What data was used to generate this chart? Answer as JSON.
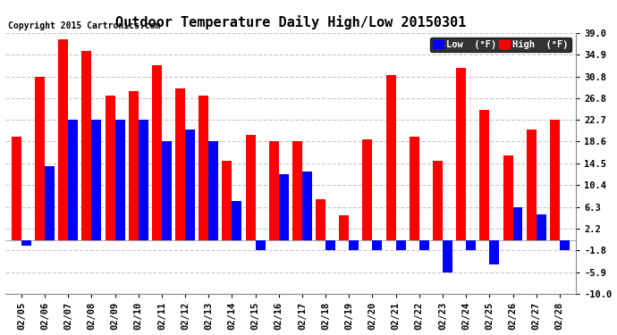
{
  "title": "Outdoor Temperature Daily High/Low 20150301",
  "copyright": "Copyright 2015 Cartronics.com",
  "legend_low": "Low  (°F)",
  "legend_high": "High  (°F)",
  "dates": [
    "02/05",
    "02/06",
    "02/07",
    "02/08",
    "02/09",
    "02/10",
    "02/11",
    "02/12",
    "02/13",
    "02/14",
    "02/15",
    "02/16",
    "02/17",
    "02/18",
    "02/19",
    "02/20",
    "02/21",
    "02/22",
    "02/23",
    "02/24",
    "02/25",
    "02/26",
    "02/27",
    "02/28"
  ],
  "high": [
    19.5,
    30.8,
    37.8,
    35.6,
    27.2,
    28.0,
    33.0,
    28.5,
    27.2,
    15.0,
    19.8,
    18.6,
    18.6,
    7.8,
    4.8,
    19.0,
    31.0,
    19.5,
    15.0,
    32.5,
    24.5,
    16.0,
    20.8,
    22.7
  ],
  "low": [
    -1.0,
    14.0,
    22.7,
    22.7,
    22.7,
    22.7,
    18.6,
    20.8,
    18.6,
    7.5,
    -1.8,
    12.5,
    13.0,
    -1.8,
    -1.8,
    -1.8,
    -1.8,
    -1.8,
    -5.9,
    -1.8,
    -4.5,
    6.3,
    5.0,
    -1.8
  ],
  "ylim": [
    -10.0,
    39.0
  ],
  "yticks": [
    39.0,
    34.9,
    30.8,
    26.8,
    22.7,
    18.6,
    14.5,
    10.4,
    6.3,
    2.2,
    -1.8,
    -5.9,
    -10.0
  ],
  "bar_color_low": "#0000ff",
  "bar_color_high": "#ff0000",
  "background_color": "#ffffff",
  "grid_color": "#c8c8c8",
  "title_fontsize": 11,
  "tick_fontsize": 7.5,
  "bar_width": 0.42
}
